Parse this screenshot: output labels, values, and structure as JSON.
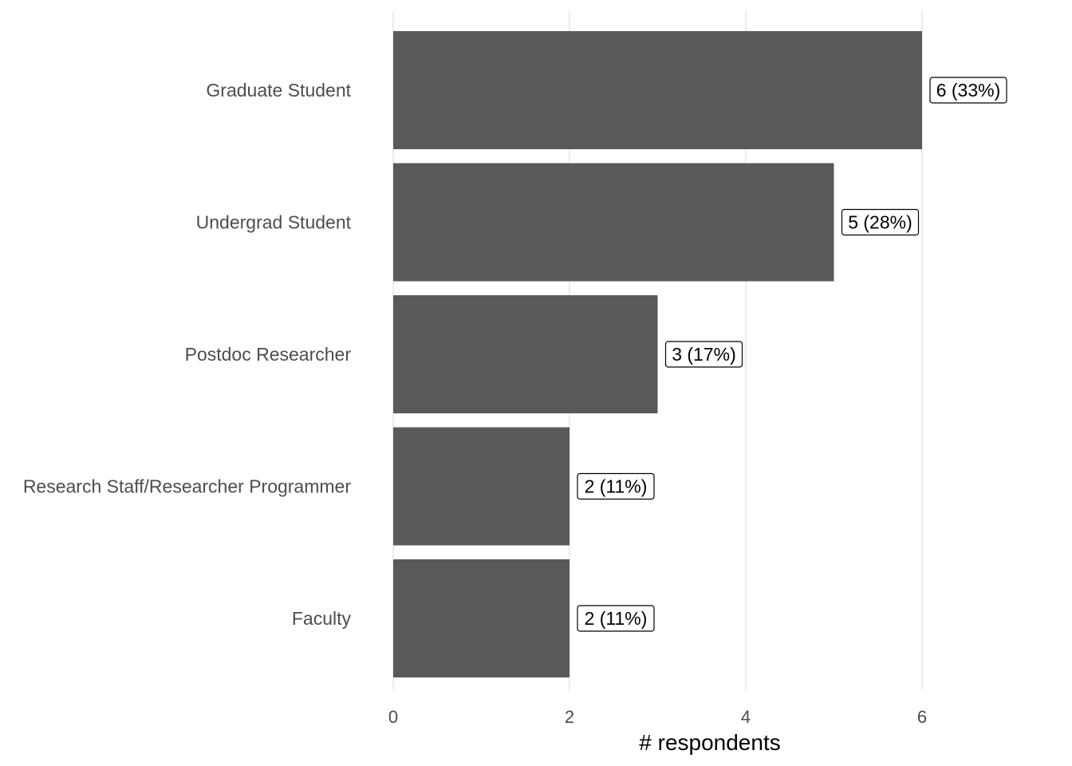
{
  "chart_data": {
    "type": "bar",
    "orientation": "horizontal",
    "categories": [
      "Graduate Student",
      "Undergrad Student",
      "Postdoc Researcher",
      "Research Staff/Researcher Programmer",
      "Faculty"
    ],
    "values": [
      6,
      5,
      3,
      2,
      2
    ],
    "data_labels": [
      "6 (33%)",
      "5 (28%)",
      "3 (17%)",
      "2 (11%)",
      "2 (11%)"
    ],
    "xlabel": "# respondents",
    "ylabel": "",
    "xlim": [
      0,
      6
    ],
    "x_ticks": [
      0,
      2,
      4,
      6
    ],
    "grid": "vertical-major",
    "legend": "none",
    "colors": {
      "bar": "#595959",
      "grid": "#ebebeb",
      "label_box_border": "#000000"
    }
  }
}
